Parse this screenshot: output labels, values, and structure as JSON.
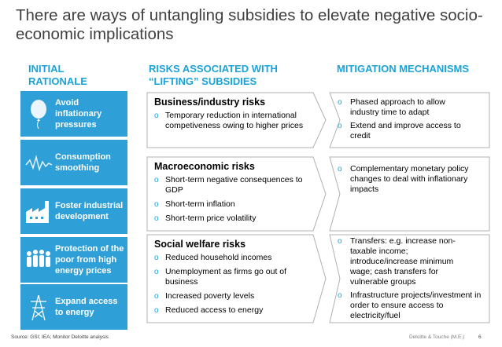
{
  "title": "There are ways of untangling subsidies to elevate negative socio-economic implications",
  "headers": {
    "col1": "INITIAL RATIONALE",
    "col2": "RISKS ASSOCIATED WITH “LIFTING” SUBSIDIES",
    "col3": "MITIGATION MECHANISMS"
  },
  "rationale": [
    {
      "label": "Avoid inflationary pressures",
      "icon": "balloon-icon"
    },
    {
      "label": "Consumption smoothing",
      "icon": "wave-line-icon"
    },
    {
      "label": "Foster industrial development",
      "icon": "factory-icon"
    },
    {
      "label": "Protection of the poor from high energy prices",
      "icon": "people-group-icon"
    },
    {
      "label": "Expand access to energy",
      "icon": "power-tower-icon"
    }
  ],
  "risks": [
    {
      "heading": "Business/industry risks",
      "items": [
        "Temporary reduction in international competiveness owing to higher prices"
      ]
    },
    {
      "heading": "Macroeconomic risks",
      "items": [
        "Short-term negative consequences to GDP",
        "Short-term inflation",
        "Short-term price volatility"
      ]
    },
    {
      "heading": "Social welfare risks",
      "items": [
        "Reduced household incomes",
        "Unemployment as firms go out of business",
        "Increased poverty levels",
        "Reduced access to energy"
      ]
    }
  ],
  "mitigation": [
    {
      "items": [
        "Phased approach to allow industry time to adapt",
        "Extend and improve access to credit"
      ]
    },
    {
      "items": [
        "Complementary monetary policy changes to deal with inflationary impacts"
      ]
    },
    {
      "items": [
        "Transfers: e.g. increase non-taxable income; introduce/increase minimum wage; cash transfers for vulnerable groups",
        "Infrastructure projects/investment in order to ensure access to electricity/fuel"
      ]
    }
  ],
  "bullet_glyph": "o",
  "footer": {
    "source": "Source: GSI; IEA; Monitor Deloitte analysis",
    "company": "Deloitte & Touche (M.E.)",
    "page": "6"
  },
  "colors": {
    "accent": "#1aa3d9",
    "box": "#2f9fd8",
    "frame": "#b0b0b0"
  }
}
